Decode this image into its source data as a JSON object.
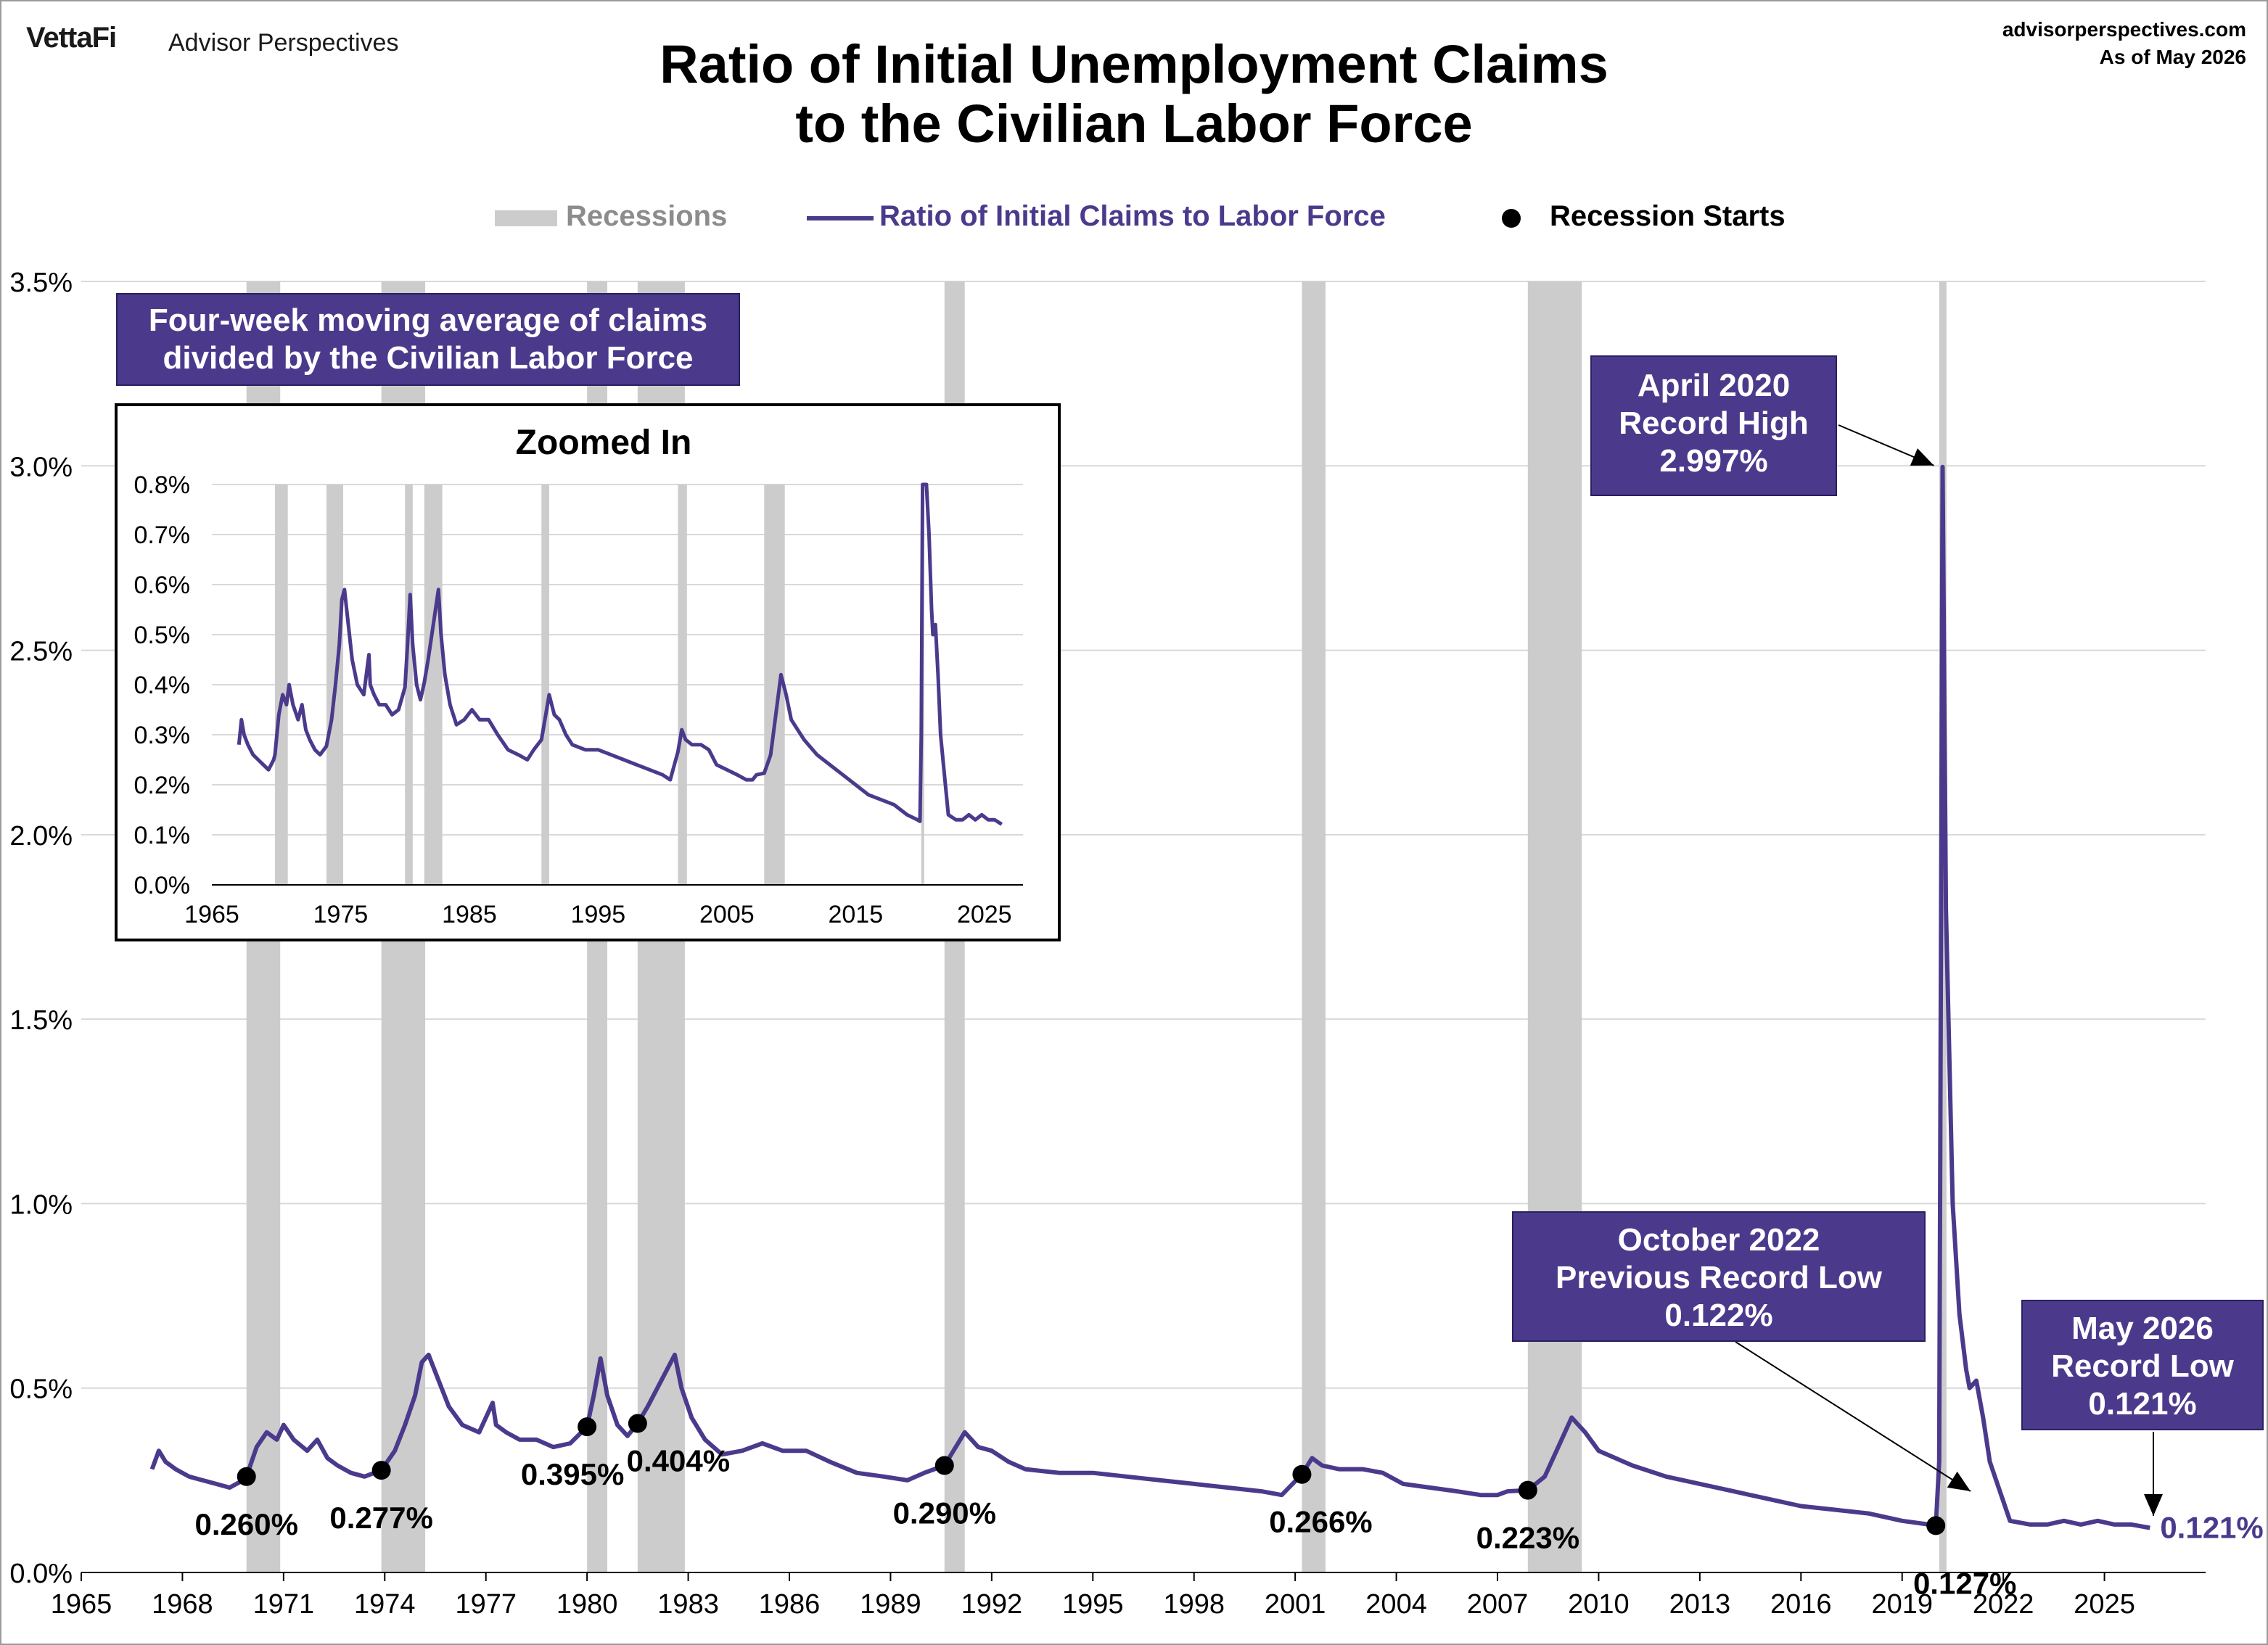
{
  "header": {
    "brand": "VettaFi",
    "brand_sub": "Advisor Perspectives",
    "site": "advisorperspectives.com",
    "as_of": "As of May 2026",
    "title_line1": "Ratio of Initial Unemployment Claims",
    "title_line2": "to the Civilian Labor Force"
  },
  "legend": {
    "recessions": "Recessions",
    "series": "Ratio of Initial Claims to Labor Force",
    "starts": "Recession Starts"
  },
  "colors": {
    "series": "#4b3a8c",
    "recession": "#cccccc",
    "callout_bg": "#4b3a8c",
    "grid": "#d9d9d9"
  },
  "callouts": {
    "moving_avg": [
      "Four-week moving average of claims",
      "divided by the Civilian Labor Force"
    ],
    "record_high": [
      "April 2020",
      "Record High",
      "2.997%"
    ],
    "prev_low": [
      "October 2022",
      "Previous Record Low",
      "0.122%"
    ],
    "record_low": [
      "May 2026",
      "Record Low",
      "0.121%"
    ]
  },
  "chart_data": [
    {
      "type": "line",
      "title": "Ratio of Initial Unemployment Claims to the Civilian Labor Force",
      "ylim": [
        0,
        3.5
      ],
      "xlim": [
        1965,
        2028
      ],
      "y_ticks": [
        "0.0%",
        "0.5%",
        "1.0%",
        "1.5%",
        "2.0%",
        "2.5%",
        "3.0%",
        "3.5%"
      ],
      "x_ticks": [
        "1965",
        "1968",
        "1971",
        "1974",
        "1977",
        "1980",
        "1983",
        "1986",
        "1989",
        "1992",
        "1995",
        "1998",
        "2001",
        "2004",
        "2007",
        "2010",
        "2013",
        "2016",
        "2019",
        "2022",
        "2025"
      ],
      "grid": "horizontal",
      "legend": "top-center",
      "recessions": [
        [
          1969.9,
          1970.9
        ],
        [
          1973.9,
          1975.2
        ],
        [
          1980.0,
          1980.6
        ],
        [
          1981.5,
          1982.9
        ],
        [
          1990.6,
          1991.2
        ],
        [
          2001.2,
          2001.9
        ],
        [
          2007.9,
          2009.5
        ],
        [
          2020.1,
          2020.3
        ]
      ],
      "recession_starts": [
        {
          "x": 1969.9,
          "y": 0.26,
          "label": "0.260%"
        },
        {
          "x": 1973.9,
          "y": 0.277,
          "label": "0.277%"
        },
        {
          "x": 1980.0,
          "y": 0.395,
          "label": "0.395%"
        },
        {
          "x": 1981.5,
          "y": 0.404,
          "label": "0.404%"
        },
        {
          "x": 1990.6,
          "y": 0.29,
          "label": "0.290%"
        },
        {
          "x": 2001.2,
          "y": 0.266,
          "label": "0.266%"
        },
        {
          "x": 2007.9,
          "y": 0.223,
          "label": "0.223%"
        },
        {
          "x": 2020.0,
          "y": 0.127,
          "label": "0.127%"
        }
      ],
      "end_label": "0.121%",
      "series": [
        {
          "name": "Ratio of Initial Claims to Labor Force",
          "x": [
            1967.1,
            1967.3,
            1967.5,
            1967.8,
            1968.2,
            1968.6,
            1969.0,
            1969.4,
            1969.8,
            1969.9,
            1970.2,
            1970.5,
            1970.8,
            1971.0,
            1971.3,
            1971.7,
            1972.0,
            1972.3,
            1972.6,
            1973.0,
            1973.4,
            1973.9,
            1974.3,
            1974.6,
            1974.9,
            1975.1,
            1975.3,
            1975.6,
            1975.9,
            1976.3,
            1976.8,
            1977.1,
            1977.2,
            1977.3,
            1977.6,
            1978.0,
            1978.5,
            1979.0,
            1979.5,
            1980.0,
            1980.2,
            1980.4,
            1980.6,
            1980.9,
            1981.2,
            1981.5,
            1981.8,
            1982.2,
            1982.6,
            1982.8,
            1983.1,
            1983.5,
            1984.0,
            1984.6,
            1985.2,
            1985.8,
            1986.5,
            1987.2,
            1988.0,
            1988.8,
            1989.5,
            1990.0,
            1990.6,
            1991.0,
            1991.2,
            1991.6,
            1992.0,
            1992.5,
            1993.0,
            1994.0,
            1995.0,
            1996.0,
            1997.0,
            1998.0,
            1999.0,
            2000.0,
            2000.6,
            2001.2,
            2001.5,
            2001.8,
            2002.3,
            2003.0,
            2003.6,
            2004.2,
            2005.0,
            2005.8,
            2006.5,
            2007.0,
            2007.3,
            2007.9,
            2008.4,
            2008.8,
            2009.2,
            2009.6,
            2010.0,
            2011.0,
            2012.0,
            2013.0,
            2014.0,
            2015.0,
            2016.0,
            2017.0,
            2018.0,
            2019.0,
            2019.8,
            2020.0,
            2020.1,
            2020.2,
            2020.3,
            2020.5,
            2020.7,
            2020.9,
            2021.0,
            2021.2,
            2021.4,
            2021.6,
            2021.9,
            2022.2,
            2022.8,
            2023.3,
            2023.8,
            2024.3,
            2024.8,
            2025.3,
            2025.8,
            2026.35
          ],
          "values": [
            0.28,
            0.33,
            0.3,
            0.28,
            0.26,
            0.25,
            0.24,
            0.23,
            0.25,
            0.26,
            0.34,
            0.38,
            0.36,
            0.4,
            0.36,
            0.33,
            0.36,
            0.31,
            0.29,
            0.27,
            0.26,
            0.277,
            0.33,
            0.4,
            0.48,
            0.57,
            0.59,
            0.52,
            0.45,
            0.4,
            0.38,
            0.44,
            0.46,
            0.4,
            0.38,
            0.36,
            0.36,
            0.34,
            0.35,
            0.395,
            0.48,
            0.58,
            0.48,
            0.4,
            0.37,
            0.404,
            0.45,
            0.52,
            0.59,
            0.5,
            0.42,
            0.36,
            0.32,
            0.33,
            0.35,
            0.33,
            0.33,
            0.3,
            0.27,
            0.26,
            0.25,
            0.27,
            0.29,
            0.35,
            0.38,
            0.34,
            0.33,
            0.3,
            0.28,
            0.27,
            0.27,
            0.26,
            0.25,
            0.24,
            0.23,
            0.22,
            0.21,
            0.266,
            0.31,
            0.29,
            0.28,
            0.28,
            0.27,
            0.24,
            0.23,
            0.22,
            0.21,
            0.21,
            0.22,
            0.223,
            0.26,
            0.34,
            0.42,
            0.38,
            0.33,
            0.29,
            0.26,
            0.24,
            0.22,
            0.2,
            0.18,
            0.17,
            0.16,
            0.14,
            0.13,
            0.127,
            0.3,
            2.997,
            1.8,
            1.0,
            0.7,
            0.55,
            0.5,
            0.52,
            0.42,
            0.3,
            0.22,
            0.14,
            0.13,
            0.13,
            0.14,
            0.13,
            0.14,
            0.13,
            0.13,
            0.121
          ]
        }
      ]
    },
    {
      "type": "line",
      "title": "Zoomed In",
      "ylim": [
        0,
        0.8
      ],
      "xlim": [
        1965,
        2028
      ],
      "y_ticks": [
        "0.0%",
        "0.1%",
        "0.2%",
        "0.3%",
        "0.4%",
        "0.5%",
        "0.6%",
        "0.7%",
        "0.8%"
      ],
      "x_ticks": [
        "1965",
        "1975",
        "1985",
        "1995",
        "2005",
        "2015",
        "2025"
      ],
      "clipped_peak": 2.997
    }
  ]
}
